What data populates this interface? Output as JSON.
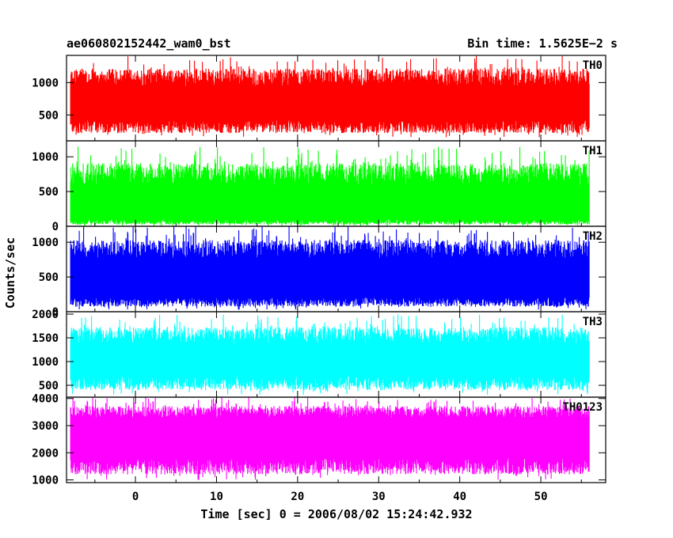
{
  "chart_data": {
    "type": "line",
    "title_left": "ae060802152442_wam0_bst",
    "title_right": "Bin time: 1.5625E−2 s",
    "xlabel": "Time [sec] 0 = 2006/08/02 15:24:42.932",
    "ylabel": "Counts/sec",
    "xlim": [
      -8.5,
      58
    ],
    "data_range": [
      -8,
      56
    ],
    "x_ticks": [
      "0",
      "10",
      "20",
      "30",
      "40",
      "50"
    ],
    "x_tick_values": [
      0,
      10,
      20,
      30,
      40,
      50
    ],
    "panels": [
      {
        "name": "TH0",
        "color": "#ff0000",
        "ylim": [
          100,
          1420
        ],
        "y_ticks": [
          "500",
          "1000"
        ],
        "y_tick_values": [
          500,
          1000
        ],
        "band_low": 320,
        "band_high": 1080,
        "spike_min": 150,
        "spike_max": 1420
      },
      {
        "name": "TH1",
        "color": "#00ff00",
        "ylim": [
          0,
          1230
        ],
        "y_ticks": [
          "0",
          "500",
          "1000"
        ],
        "y_tick_values": [
          0,
          500,
          1000
        ],
        "band_low": 60,
        "band_high": 750,
        "spike_min": 0,
        "spike_max": 1150
      },
      {
        "name": "TH2",
        "color": "#0000ff",
        "ylim": [
          0,
          1230
        ],
        "y_ticks": [
          "0",
          "500",
          "1000"
        ],
        "y_tick_values": [
          0,
          500,
          1000
        ],
        "band_low": 140,
        "band_high": 900,
        "spike_min": 30,
        "spike_max": 1230
      },
      {
        "name": "TH3",
        "color": "#00ffff",
        "ylim": [
          250,
          2050
        ],
        "y_ticks": [
          "500",
          "1000",
          "1500",
          "2000"
        ],
        "y_tick_values": [
          500,
          1000,
          1500,
          2000
        ],
        "band_low": 550,
        "band_high": 1550,
        "spike_min": 300,
        "spike_max": 2000
      },
      {
        "name": "TH0123",
        "color": "#ff00ff",
        "ylim": [
          900,
          4050
        ],
        "y_ticks": [
          "1000",
          "2000",
          "3000",
          "4000"
        ],
        "y_tick_values": [
          1000,
          2000,
          3000,
          4000
        ],
        "band_low": 1500,
        "band_high": 3500,
        "spike_min": 1000,
        "spike_max": 4050
      }
    ]
  }
}
